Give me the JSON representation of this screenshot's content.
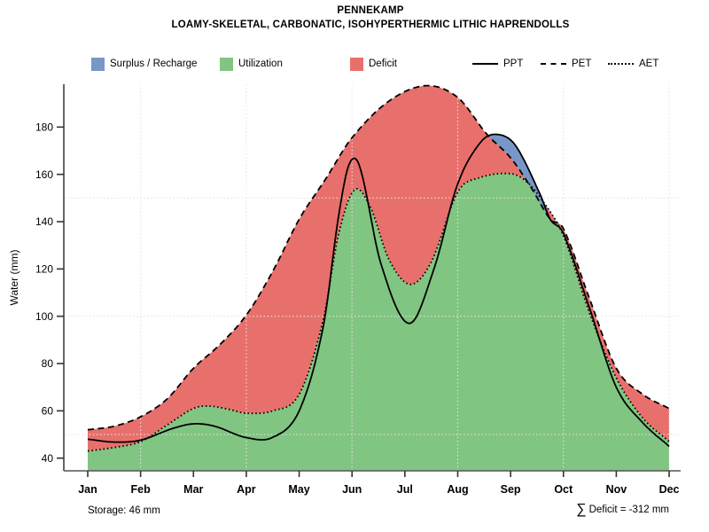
{
  "title": "PENNEKAMP",
  "subtitle": "LOAMY-SKELETAL, CARBONATIC, ISOHYPERTHERMIC LITHIC HAPRENDOLLS",
  "legend": {
    "fills": [
      {
        "label": "Surplus / Recharge",
        "color": "#7697C8"
      },
      {
        "label": "Utilization",
        "color": "#80C581"
      },
      {
        "label": "Deficit",
        "color": "#E8706C"
      }
    ],
    "lines": [
      {
        "label": "PPT",
        "style": "solid"
      },
      {
        "label": "PET",
        "style": "dashed"
      },
      {
        "label": "AET",
        "style": "dotted"
      }
    ]
  },
  "footer": {
    "storage": "Storage: 46 mm",
    "sigma": "∑",
    "deficit": "Deficit = -312 mm"
  },
  "chart_data": {
    "type": "area",
    "title": "PENNEKAMP",
    "ylabel": "Water (mm)",
    "ylim": [
      40,
      180
    ],
    "yticks": [
      40,
      60,
      80,
      100,
      120,
      140,
      160,
      180
    ],
    "h_gridlines": [
      50,
      100,
      150
    ],
    "v_gridline_months": [
      1,
      3,
      5,
      7,
      9,
      11
    ],
    "grid_on": true,
    "legend_position": "top",
    "categories": [
      "Jan",
      "Feb",
      "Mar",
      "Apr",
      "May",
      "Jun",
      "Jul",
      "Aug",
      "Sep",
      "Oct",
      "Nov",
      "Dec"
    ],
    "monthly_values": {
      "PPT": [
        48,
        47.5,
        54.5,
        49,
        60,
        165,
        97,
        156,
        175,
        135,
        70,
        45
      ],
      "PET": [
        52,
        57.5,
        78,
        100,
        141,
        175,
        196,
        192,
        167,
        137,
        78,
        61
      ],
      "AET": [
        43,
        47,
        61,
        59,
        67,
        153,
        114,
        153,
        160,
        134,
        74,
        47
      ]
    },
    "annotations": {
      "storage_mm": 46,
      "sum_deficit_mm": -312
    },
    "regions": [
      {
        "name": "surplus-recharge",
        "between": [
          "PPT",
          "PET"
        ],
        "where": "PPT>PET",
        "color": "#7697C8"
      },
      {
        "name": "utilization",
        "between": [
          "AET",
          "baseline"
        ],
        "color": "#80C581"
      },
      {
        "name": "deficit",
        "between": [
          "PET",
          "AET"
        ],
        "color": "#E8706C"
      }
    ],
    "series": [
      {
        "name": "PPT",
        "style": "solid",
        "points": [
          [
            0,
            48
          ],
          [
            0.5,
            46.8
          ],
          [
            1,
            47.6
          ],
          [
            1.6,
            52.5
          ],
          [
            2,
            54.5
          ],
          [
            2.4,
            53.5
          ],
          [
            3,
            48.7
          ],
          [
            3.5,
            48.8
          ],
          [
            4,
            60
          ],
          [
            4.45,
            95
          ],
          [
            4.75,
            143
          ],
          [
            4.95,
            164.5
          ],
          [
            5.15,
            163
          ],
          [
            5.55,
            122
          ],
          [
            6.08,
            97
          ],
          [
            6.55,
            120
          ],
          [
            7,
            156
          ],
          [
            7.45,
            174
          ],
          [
            7.78,
            176.8
          ],
          [
            8.1,
            172
          ],
          [
            8.55,
            152
          ],
          [
            8.75,
            141
          ],
          [
            9,
            135
          ],
          [
            9.5,
            103
          ],
          [
            10,
            70
          ],
          [
            10.5,
            55
          ],
          [
            11,
            45
          ]
        ]
      },
      {
        "name": "PET",
        "style": "dashed",
        "points": [
          [
            0,
            52
          ],
          [
            0.5,
            53.5
          ],
          [
            1,
            57.5
          ],
          [
            1.5,
            65
          ],
          [
            2,
            78
          ],
          [
            2.5,
            88
          ],
          [
            3,
            100.5
          ],
          [
            3.5,
            119
          ],
          [
            4,
            141
          ],
          [
            4.5,
            158
          ],
          [
            5,
            175.5
          ],
          [
            5.7,
            191
          ],
          [
            6.4,
            197.5
          ],
          [
            7,
            192.5
          ],
          [
            7.55,
            177
          ],
          [
            8,
            167
          ],
          [
            8.4,
            154
          ],
          [
            8.75,
            141
          ],
          [
            9,
            137
          ],
          [
            9.5,
            107
          ],
          [
            10,
            78
          ],
          [
            10.5,
            67
          ],
          [
            11,
            61
          ]
        ]
      },
      {
        "name": "AET",
        "style": "dotted",
        "points": [
          [
            0,
            43
          ],
          [
            0.5,
            44.5
          ],
          [
            1,
            47
          ],
          [
            1.5,
            54
          ],
          [
            2,
            61
          ],
          [
            2.3,
            62
          ],
          [
            2.7,
            60.5
          ],
          [
            3,
            59
          ],
          [
            3.5,
            60
          ],
          [
            4,
            67
          ],
          [
            4.45,
            98
          ],
          [
            4.75,
            135
          ],
          [
            5.05,
            153.5
          ],
          [
            5.35,
            146
          ],
          [
            5.7,
            124
          ],
          [
            6.1,
            113.5
          ],
          [
            6.5,
            123
          ],
          [
            7,
            152.5
          ],
          [
            7.4,
            158.5
          ],
          [
            8,
            160.3
          ],
          [
            8.3,
            157
          ],
          [
            8.6,
            149
          ],
          [
            9,
            134
          ],
          [
            9.5,
            101
          ],
          [
            10,
            74
          ],
          [
            10.5,
            57
          ],
          [
            11,
            47
          ]
        ]
      }
    ]
  }
}
